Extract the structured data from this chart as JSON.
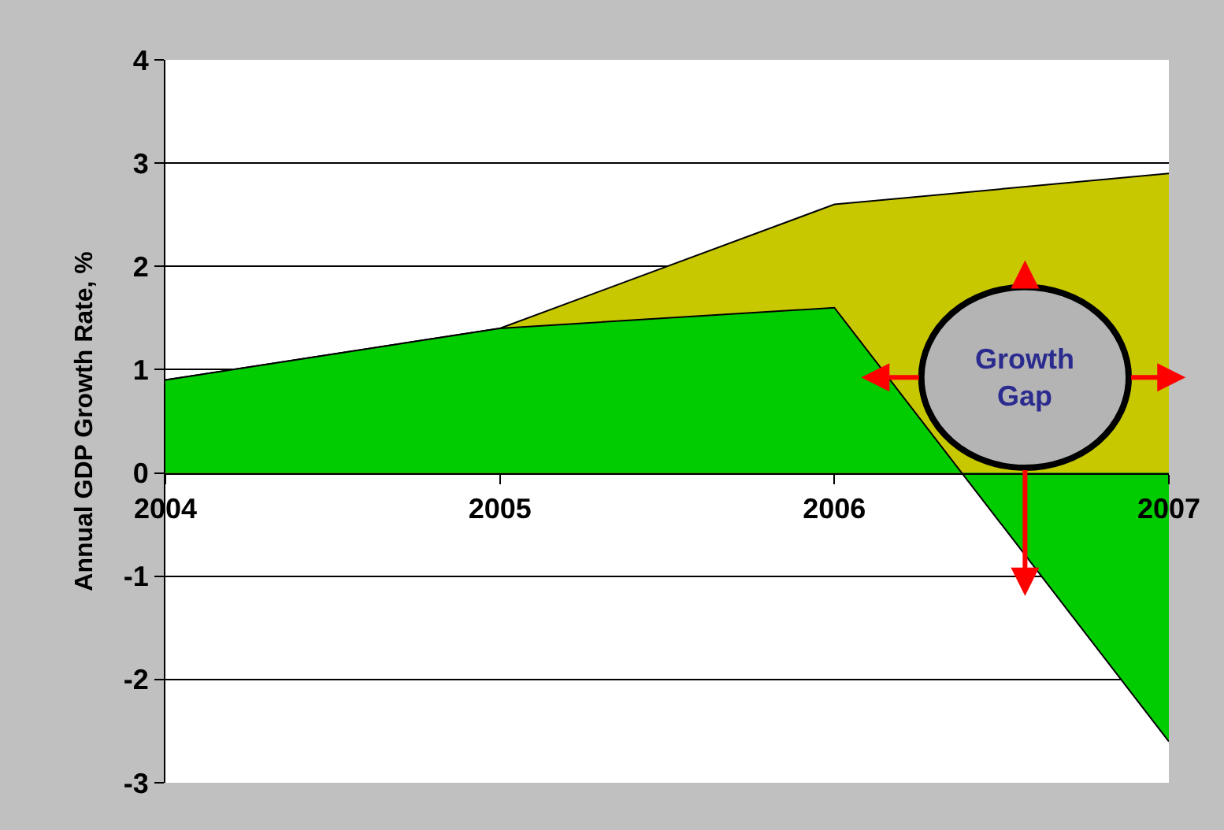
{
  "chart_data": {
    "type": "area",
    "ylabel": "Annual GDP Growth Rate, %",
    "x": [
      2004,
      2005,
      2006,
      2007
    ],
    "series": [
      {
        "color": "#c8c800",
        "values": [
          0.9,
          1.4,
          2.6,
          2.9
        ]
      },
      {
        "color": "#00cc00",
        "values": [
          0.9,
          1.4,
          1.6,
          -2.6
        ]
      }
    ],
    "xlim": [
      2004,
      2007
    ],
    "xticks": [
      2004,
      2005,
      2006,
      2007
    ],
    "ylim": [
      -3,
      4
    ],
    "yticks": [
      -3,
      -2,
      -1,
      0,
      1,
      2,
      3,
      4
    ],
    "grid": "y",
    "annotations": [
      "Growth\nGap"
    ]
  }
}
